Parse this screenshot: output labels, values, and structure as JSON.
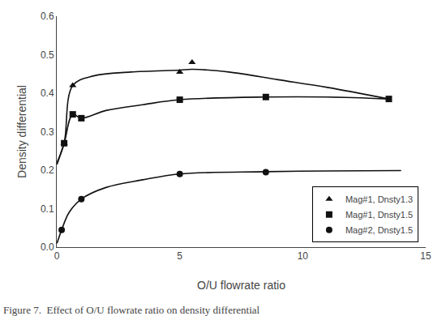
{
  "chart_data": {
    "type": "scatter",
    "title": "Figure 7.  Effect of O/U flowrate ratio on density differential",
    "xlabel": "O/U flowrate ratio",
    "ylabel": "Density differential",
    "xlim": [
      0,
      15
    ],
    "ylim": [
      0,
      0.6
    ],
    "xticks": [
      0,
      5,
      10,
      15
    ],
    "yticks": [
      {
        "value": 0,
        "label": "0.0"
      },
      0.1,
      0.2,
      0.3,
      0.4,
      0.5,
      0.6
    ],
    "color": "#111111",
    "grid": false,
    "legend": "lower right",
    "series": [
      {
        "name": "Mag#1, Dnsty1.3",
        "marker": "triangle",
        "x": [
          0.3,
          0.65,
          5.0,
          5.5
        ],
        "values": [
          0.27,
          0.42,
          0.455,
          0.48
        ],
        "curve": {
          "x": [
            0.01,
            0.3,
            0.65,
            1.5,
            3.0,
            5.0,
            5.5,
            7.0,
            9.0,
            11.0,
            13.5
          ],
          "values": [
            0.22,
            0.27,
            0.42,
            0.445,
            0.455,
            0.46,
            0.462,
            0.455,
            0.435,
            0.415,
            0.385
          ]
        }
      },
      {
        "name": "Mag#1, Dnsty1.5",
        "marker": "square",
        "x": [
          0.3,
          0.65,
          1.0,
          5.0,
          8.5,
          13.5
        ],
        "values": [
          0.27,
          0.345,
          0.335,
          0.383,
          0.39,
          0.385
        ],
        "curve": {
          "x": [
            0.01,
            0.3,
            0.65,
            1.0,
            2.0,
            3.5,
            5.0,
            8.5,
            11.0,
            13.5
          ],
          "values": [
            0.215,
            0.27,
            0.345,
            0.335,
            0.355,
            0.37,
            0.383,
            0.39,
            0.39,
            0.385
          ]
        }
      },
      {
        "name": "Mag#2, Dnsty1.5",
        "marker": "circle",
        "x": [
          0.2,
          1.0,
          5.0,
          8.5
        ],
        "values": [
          0.045,
          0.125,
          0.19,
          0.195
        ],
        "curve": {
          "x": [
            0.01,
            0.2,
            0.5,
            1.0,
            2.0,
            3.5,
            5.0,
            8.5,
            11.0,
            14.0
          ],
          "values": [
            0.01,
            0.045,
            0.09,
            0.125,
            0.155,
            0.175,
            0.19,
            0.196,
            0.198,
            0.199
          ]
        }
      }
    ]
  }
}
